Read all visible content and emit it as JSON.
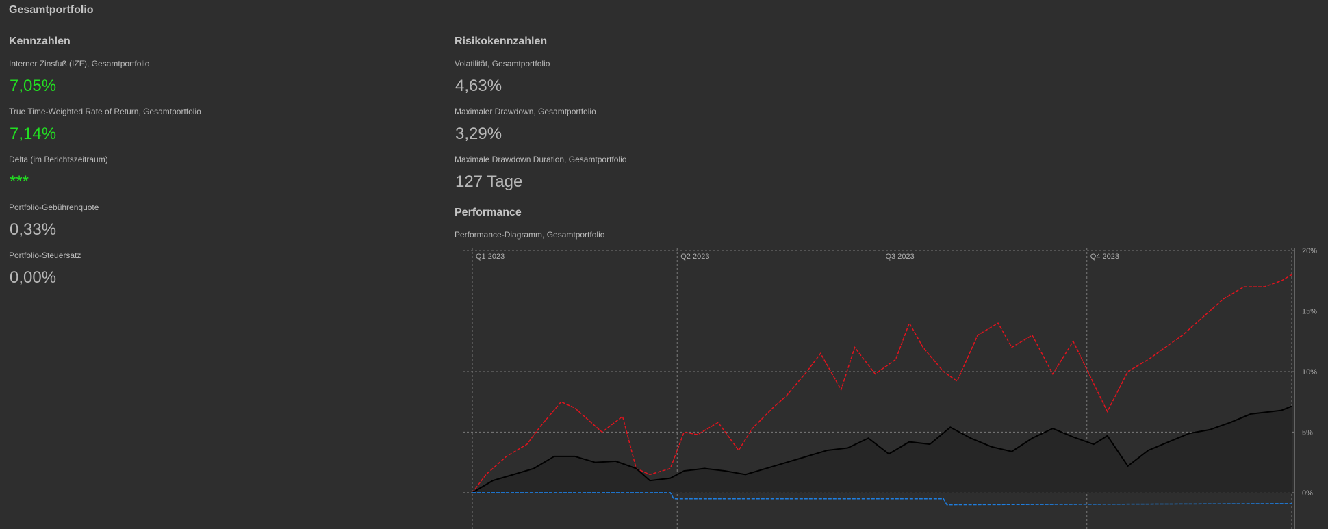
{
  "page": {
    "title": "Gesamtportfolio"
  },
  "kennzahlen": {
    "title": "Kennzahlen",
    "items": [
      {
        "label": "Interner Zinsfuß (IZF), Gesamtportfolio",
        "value": "7,05%"
      },
      {
        "label": "True Time-Weighted Rate of Return, Gesamtportfolio",
        "value": "7,14%"
      },
      {
        "label": "Delta (im Berichtszeitraum)",
        "value": "***"
      },
      {
        "label": "Portfolio-Gebührenquote",
        "value": "0,33%"
      },
      {
        "label": "Portfolio-Steuersatz",
        "value": "0,00%"
      }
    ]
  },
  "risiko": {
    "title": "Risikokennzahlen",
    "items": [
      {
        "label": "Volatilität, Gesamtportfolio",
        "value": "4,63%"
      },
      {
        "label": "Maximaler Drawdown, Gesamtportfolio",
        "value": "3,29%"
      },
      {
        "label": "Maximale Drawdown Duration, Gesamtportfolio",
        "value": "127 Tage"
      }
    ]
  },
  "performance": {
    "title": "Performance",
    "chart_label": "Performance-Diagramm, Gesamtportfolio"
  },
  "colors": {
    "positive": "#22e022",
    "portfolio_line": "#000000",
    "benchmark_line": "#e0141e",
    "fee_line": "#1e7ee0",
    "grid": "#7a7a7a"
  },
  "chart_data": {
    "type": "line",
    "title": "",
    "xlabel": "",
    "ylabel": "",
    "quarters": [
      "Q1 2023",
      "Q2 2023",
      "Q3 2023",
      "Q4 2023"
    ],
    "y_ticks": [
      {
        "value": 20,
        "label": "20%"
      },
      {
        "value": 15,
        "label": "15%"
      },
      {
        "value": 10,
        "label": "10%"
      },
      {
        "value": 5,
        "label": "5%"
      },
      {
        "value": 0,
        "label": "0%"
      }
    ],
    "xlim": [
      0,
      12
    ],
    "ylim": [
      -3,
      20
    ],
    "grid": true,
    "series": [
      {
        "style": "dashed",
        "color": "#e0141e",
        "x": [
          0,
          0.2,
          0.5,
          0.8,
          1.0,
          1.3,
          1.5,
          1.7,
          1.9,
          2.2,
          2.4,
          2.6,
          2.9,
          3.1,
          3.3,
          3.6,
          3.9,
          4.1,
          4.4,
          4.6,
          4.9,
          5.1,
          5.4,
          5.6,
          5.9,
          6.2,
          6.4,
          6.6,
          6.9,
          7.1,
          7.4,
          7.7,
          7.9,
          8.2,
          8.5,
          8.8,
          9.1,
          9.3,
          9.6,
          9.9,
          10.2,
          10.4,
          10.7,
          11.0,
          11.3,
          11.6,
          11.85,
          12.0
        ],
        "y": [
          0,
          1.5,
          3,
          4,
          5.5,
          7.5,
          7,
          6,
          5,
          6.3,
          2,
          1.5,
          2,
          5,
          4.8,
          5.8,
          3.5,
          5.3,
          7,
          8,
          10,
          11.5,
          8.5,
          12,
          9.8,
          11,
          14,
          12,
          10,
          9.2,
          13,
          14,
          12,
          13,
          9.8,
          12.5,
          9,
          6.7,
          10,
          11,
          12.2,
          13,
          14.5,
          16,
          17,
          17,
          17.5,
          18
        ]
      },
      {
        "style": "solid",
        "color": "#000000",
        "x": [
          0,
          0.3,
          0.6,
          0.9,
          1.2,
          1.5,
          1.8,
          2.1,
          2.4,
          2.6,
          2.9,
          3.1,
          3.4,
          3.7,
          4.0,
          4.3,
          4.6,
          4.9,
          5.2,
          5.5,
          5.8,
          6.1,
          6.4,
          6.7,
          7.0,
          7.3,
          7.6,
          7.9,
          8.2,
          8.5,
          8.8,
          9.1,
          9.3,
          9.6,
          9.9,
          10.2,
          10.5,
          10.8,
          11.1,
          11.4,
          11.7,
          11.85,
          12.0
        ],
        "y": [
          0,
          1,
          1.5,
          2,
          3,
          3,
          2.5,
          2.6,
          2,
          1,
          1.2,
          1.8,
          2,
          1.8,
          1.5,
          2,
          2.5,
          3,
          3.5,
          3.7,
          4.5,
          3.2,
          4.2,
          4,
          5.4,
          4.5,
          3.8,
          3.4,
          4.5,
          5.3,
          4.6,
          4,
          4.7,
          2.2,
          3.5,
          4.2,
          4.9,
          5.2,
          5.8,
          6.5,
          6.7,
          6.8,
          7.14
        ]
      },
      {
        "style": "dashed",
        "color": "#1e7ee0",
        "x": [
          0,
          2.9,
          2.95,
          6.9,
          6.95,
          12.0
        ],
        "y": [
          0,
          0,
          -0.5,
          -0.5,
          -1,
          -0.9
        ]
      }
    ]
  }
}
